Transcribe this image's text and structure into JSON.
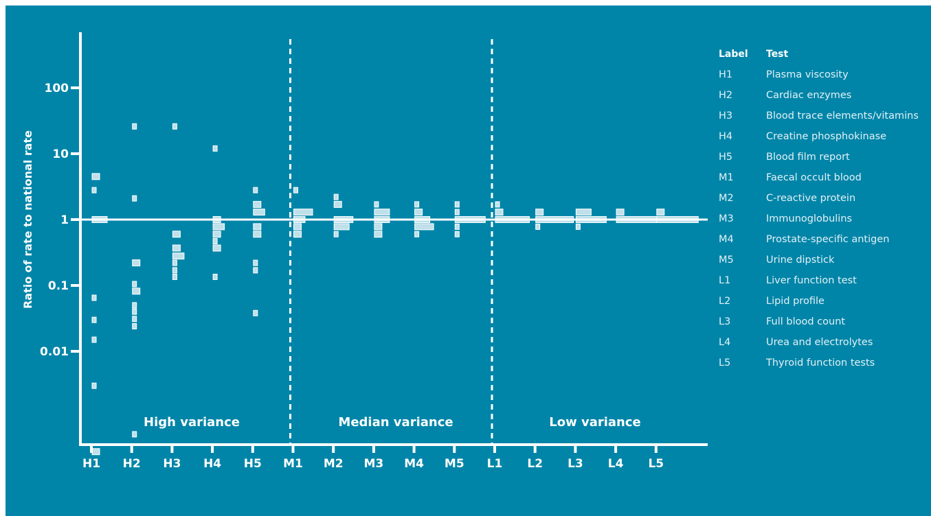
{
  "colors": {
    "background": "#0085a8",
    "axis": "#ffffff",
    "marker": "#bfe0ea"
  },
  "chart_data": {
    "type": "scatter",
    "title": "",
    "ylabel": "Ratio of rate to national rate",
    "xlabel": "",
    "y_scale": "log",
    "ylim": [
      0.0002,
      500
    ],
    "y_ticks": [
      {
        "value": 0.01,
        "label": "0.01"
      },
      {
        "value": 0.1,
        "label": "0.1"
      },
      {
        "value": 1,
        "label": "1"
      },
      {
        "value": 10,
        "label": "10"
      },
      {
        "value": 100,
        "label": "100"
      }
    ],
    "reference_line": 1,
    "categories": [
      "H1",
      "H2",
      "H3",
      "H4",
      "H5",
      "M1",
      "M2",
      "M3",
      "M4",
      "M5",
      "L1",
      "L2",
      "L3",
      "L4",
      "L5"
    ],
    "regions": [
      {
        "label": "High variance",
        "from": "H1",
        "to": "H5"
      },
      {
        "label": "Median variance",
        "from": "M1",
        "to": "M5"
      },
      {
        "label": "Low variance",
        "from": "L1",
        "to": "L5"
      }
    ],
    "points": [
      {
        "category": "H1",
        "y": 4.5,
        "n": 2
      },
      {
        "category": "H1",
        "y": 2.8,
        "n": 1
      },
      {
        "category": "H1",
        "y": 1.0,
        "n": 4
      },
      {
        "category": "H1",
        "y": 0.065,
        "n": 1
      },
      {
        "category": "H1",
        "y": 0.03,
        "n": 1
      },
      {
        "category": "H1",
        "y": 0.015,
        "n": 1
      },
      {
        "category": "H1",
        "y": 0.003,
        "n": 1
      },
      {
        "category": "H1",
        "y": 0.0003,
        "n": 2
      },
      {
        "category": "H2",
        "y": 26,
        "n": 1
      },
      {
        "category": "H2",
        "y": 2.1,
        "n": 1
      },
      {
        "category": "H2",
        "y": 0.22,
        "n": 2
      },
      {
        "category": "H2",
        "y": 0.105,
        "n": 1
      },
      {
        "category": "H2",
        "y": 0.082,
        "n": 2
      },
      {
        "category": "H2",
        "y": 0.05,
        "n": 1
      },
      {
        "category": "H2",
        "y": 0.04,
        "n": 1
      },
      {
        "category": "H2",
        "y": 0.031,
        "n": 1
      },
      {
        "category": "H2",
        "y": 0.024,
        "n": 1
      },
      {
        "category": "H2",
        "y": 0.00055,
        "n": 1
      },
      {
        "category": "H3",
        "y": 26,
        "n": 1
      },
      {
        "category": "H3",
        "y": 0.6,
        "n": 2
      },
      {
        "category": "H3",
        "y": 0.37,
        "n": 2
      },
      {
        "category": "H3",
        "y": 0.28,
        "n": 3
      },
      {
        "category": "H3",
        "y": 0.22,
        "n": 1
      },
      {
        "category": "H3",
        "y": 0.17,
        "n": 1
      },
      {
        "category": "H3",
        "y": 0.135,
        "n": 1
      },
      {
        "category": "H4",
        "y": 12,
        "n": 1
      },
      {
        "category": "H4",
        "y": 1.0,
        "n": 2
      },
      {
        "category": "H4",
        "y": 0.78,
        "n": 3
      },
      {
        "category": "H4",
        "y": 0.6,
        "n": 2
      },
      {
        "category": "H4",
        "y": 0.47,
        "n": 1
      },
      {
        "category": "H4",
        "y": 0.37,
        "n": 2
      },
      {
        "category": "H4",
        "y": 0.135,
        "n": 1
      },
      {
        "category": "H5",
        "y": 2.8,
        "n": 1
      },
      {
        "category": "H5",
        "y": 1.7,
        "n": 2
      },
      {
        "category": "H5",
        "y": 1.3,
        "n": 3
      },
      {
        "category": "H5",
        "y": 0.78,
        "n": 2
      },
      {
        "category": "H5",
        "y": 0.6,
        "n": 2
      },
      {
        "category": "H5",
        "y": 0.22,
        "n": 1
      },
      {
        "category": "H5",
        "y": 0.17,
        "n": 1
      },
      {
        "category": "H5",
        "y": 0.038,
        "n": 1
      },
      {
        "category": "M1",
        "y": 2.8,
        "n": 1
      },
      {
        "category": "M1",
        "y": 1.3,
        "n": 5
      },
      {
        "category": "M1",
        "y": 1.0,
        "n": 3
      },
      {
        "category": "M1",
        "y": 0.78,
        "n": 2
      },
      {
        "category": "M1",
        "y": 0.6,
        "n": 2
      },
      {
        "category": "M2",
        "y": 2.2,
        "n": 1
      },
      {
        "category": "M2",
        "y": 1.7,
        "n": 2
      },
      {
        "category": "M2",
        "y": 1.0,
        "n": 5
      },
      {
        "category": "M2",
        "y": 0.78,
        "n": 4
      },
      {
        "category": "M2",
        "y": 0.6,
        "n": 1
      },
      {
        "category": "M3",
        "y": 1.7,
        "n": 1
      },
      {
        "category": "M3",
        "y": 1.3,
        "n": 4
      },
      {
        "category": "M3",
        "y": 1.0,
        "n": 4
      },
      {
        "category": "M3",
        "y": 0.78,
        "n": 2
      },
      {
        "category": "M3",
        "y": 0.6,
        "n": 2
      },
      {
        "category": "M4",
        "y": 1.7,
        "n": 1
      },
      {
        "category": "M4",
        "y": 1.3,
        "n": 2
      },
      {
        "category": "M4",
        "y": 1.0,
        "n": 4
      },
      {
        "category": "M4",
        "y": 0.78,
        "n": 5
      },
      {
        "category": "M4",
        "y": 0.6,
        "n": 1
      },
      {
        "category": "M5",
        "y": 1.7,
        "n": 1
      },
      {
        "category": "M5",
        "y": 1.3,
        "n": 1
      },
      {
        "category": "M5",
        "y": 1.0,
        "n": 8
      },
      {
        "category": "M5",
        "y": 0.78,
        "n": 1
      },
      {
        "category": "M5",
        "y": 0.6,
        "n": 1
      },
      {
        "category": "L1",
        "y": 1.7,
        "n": 1
      },
      {
        "category": "L1",
        "y": 1.3,
        "n": 2
      },
      {
        "category": "L1",
        "y": 1.0,
        "n": 9
      },
      {
        "category": "L2",
        "y": 1.3,
        "n": 2
      },
      {
        "category": "L2",
        "y": 1.0,
        "n": 10
      },
      {
        "category": "L2",
        "y": 0.78,
        "n": 1
      },
      {
        "category": "L3",
        "y": 1.3,
        "n": 4
      },
      {
        "category": "L3",
        "y": 1.0,
        "n": 8
      },
      {
        "category": "L3",
        "y": 0.78,
        "n": 1
      },
      {
        "category": "L4",
        "y": 1.3,
        "n": 2
      },
      {
        "category": "L4",
        "y": 1.0,
        "n": 11
      },
      {
        "category": "L5",
        "y": 1.3,
        "n": 2
      },
      {
        "category": "L5",
        "y": 1.0,
        "n": 11
      }
    ]
  },
  "legend": {
    "header_label": "Label",
    "header_test": "Test",
    "rows": [
      {
        "code": "H1",
        "name": "Plasma viscosity"
      },
      {
        "code": "H2",
        "name": "Cardiac enzymes"
      },
      {
        "code": "H3",
        "name": "Blood trace elements/vitamins"
      },
      {
        "code": "H4",
        "name": "Creatine phosphokinase"
      },
      {
        "code": "H5",
        "name": "Blood film report"
      },
      {
        "code": "M1",
        "name": "Faecal occult blood"
      },
      {
        "code": "M2",
        "name": "C-reactive protein"
      },
      {
        "code": "M3",
        "name": "Immunoglobulins"
      },
      {
        "code": "M4",
        "name": "Prostate-specific antigen"
      },
      {
        "code": "M5",
        "name": "Urine dipstick"
      },
      {
        "code": "L1",
        "name": "Liver function test"
      },
      {
        "code": "L2",
        "name": "Lipid profile"
      },
      {
        "code": "L3",
        "name": "Full blood count"
      },
      {
        "code": "L4",
        "name": "Urea and electrolytes"
      },
      {
        "code": "L5",
        "name": "Thyroid function tests"
      }
    ]
  }
}
